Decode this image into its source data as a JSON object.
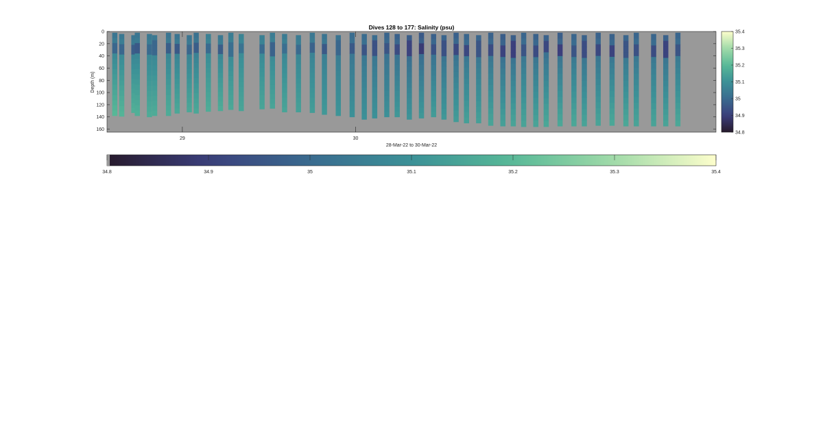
{
  "chart_data": {
    "type": "heatmap",
    "title": "Dives 128 to 177: Salinity (psu)",
    "xlabel": "28-Mar-22 to 30-Mar-22",
    "ylabel": "Depth (m)",
    "x_ticks": [
      "29",
      "30"
    ],
    "y_ticks": [
      "0",
      "20",
      "40",
      "60",
      "80",
      "100",
      "120",
      "140",
      "160"
    ],
    "ylim": [
      0,
      165
    ],
    "clim": [
      34.8,
      35.4
    ],
    "colorbar_ticks": [
      "34.8",
      "34.9",
      "35",
      "35.1",
      "35.2",
      "35.3",
      "35.4"
    ],
    "background_color": "#999999",
    "colormap": [
      "#271a2c",
      "#3b3f7c",
      "#3a6b8f",
      "#3c9197",
      "#58b997",
      "#a1dba9",
      "#fdfecc"
    ],
    "profile_x_days": [
      28.61,
      28.65,
      28.72,
      28.74,
      28.81,
      28.84,
      28.92,
      28.97,
      29.04,
      29.08,
      29.15,
      29.22,
      29.28,
      29.34,
      29.46,
      29.52,
      29.59,
      29.67,
      29.75,
      29.82,
      29.9,
      29.98,
      30.05,
      30.11,
      30.18,
      30.24,
      30.31,
      30.38,
      30.45,
      30.51,
      30.58,
      30.64,
      30.71,
      30.78,
      30.85,
      30.91,
      30.97,
      31.04,
      31.1,
      31.18,
      31.26,
      31.32,
      31.4,
      31.48,
      31.56,
      31.62,
      31.72,
      31.79,
      31.86
    ],
    "profile_max_depth": [
      138,
      139,
      133,
      138,
      140,
      138,
      138,
      134,
      132,
      134,
      131,
      130,
      128,
      130,
      127,
      126,
      132,
      132,
      133,
      136,
      138,
      140,
      144,
      142,
      140,
      140,
      144,
      142,
      140,
      144,
      148,
      150,
      150,
      154,
      155,
      155,
      156,
      156,
      156,
      155,
      155,
      155,
      154,
      154,
      155,
      155,
      155,
      155,
      155
    ],
    "profile_surface_salinity": [
      35.02,
      35.03,
      35.02,
      35.02,
      35.03,
      35.03,
      35.02,
      35.02,
      35.02,
      35.01,
      35.05,
      35.03,
      35.04,
      35.06,
      35.05,
      35.04,
      35.04,
      35.04,
      35.03,
      35.02,
      35.02,
      35.0,
      35.0,
      35.0,
      34.98,
      34.97,
      34.96,
      34.95,
      34.97,
      34.98,
      34.97,
      34.98,
      34.98,
      34.97,
      34.96,
      34.96,
      34.98,
      34.97,
      34.97,
      34.96,
      34.98,
      34.97,
      34.97,
      34.97,
      34.98,
      34.98,
      34.98,
      34.97,
      34.98
    ],
    "profile_deep_salinity": [
      35.2,
      35.19,
      35.18,
      35.18,
      35.17,
      35.17,
      35.17,
      35.16,
      35.16,
      35.16,
      35.17,
      35.17,
      35.16,
      35.15,
      35.15,
      35.15,
      35.15,
      35.14,
      35.13,
      35.12,
      35.11,
      35.1,
      35.1,
      35.1,
      35.1,
      35.12,
      35.11,
      35.12,
      35.13,
      35.12,
      35.13,
      35.14,
      35.14,
      35.15,
      35.14,
      35.15,
      35.15,
      35.15,
      35.16,
      35.16,
      35.16,
      35.15,
      35.15,
      35.16,
      35.16,
      35.15,
      35.15,
      35.15,
      35.16
    ]
  }
}
